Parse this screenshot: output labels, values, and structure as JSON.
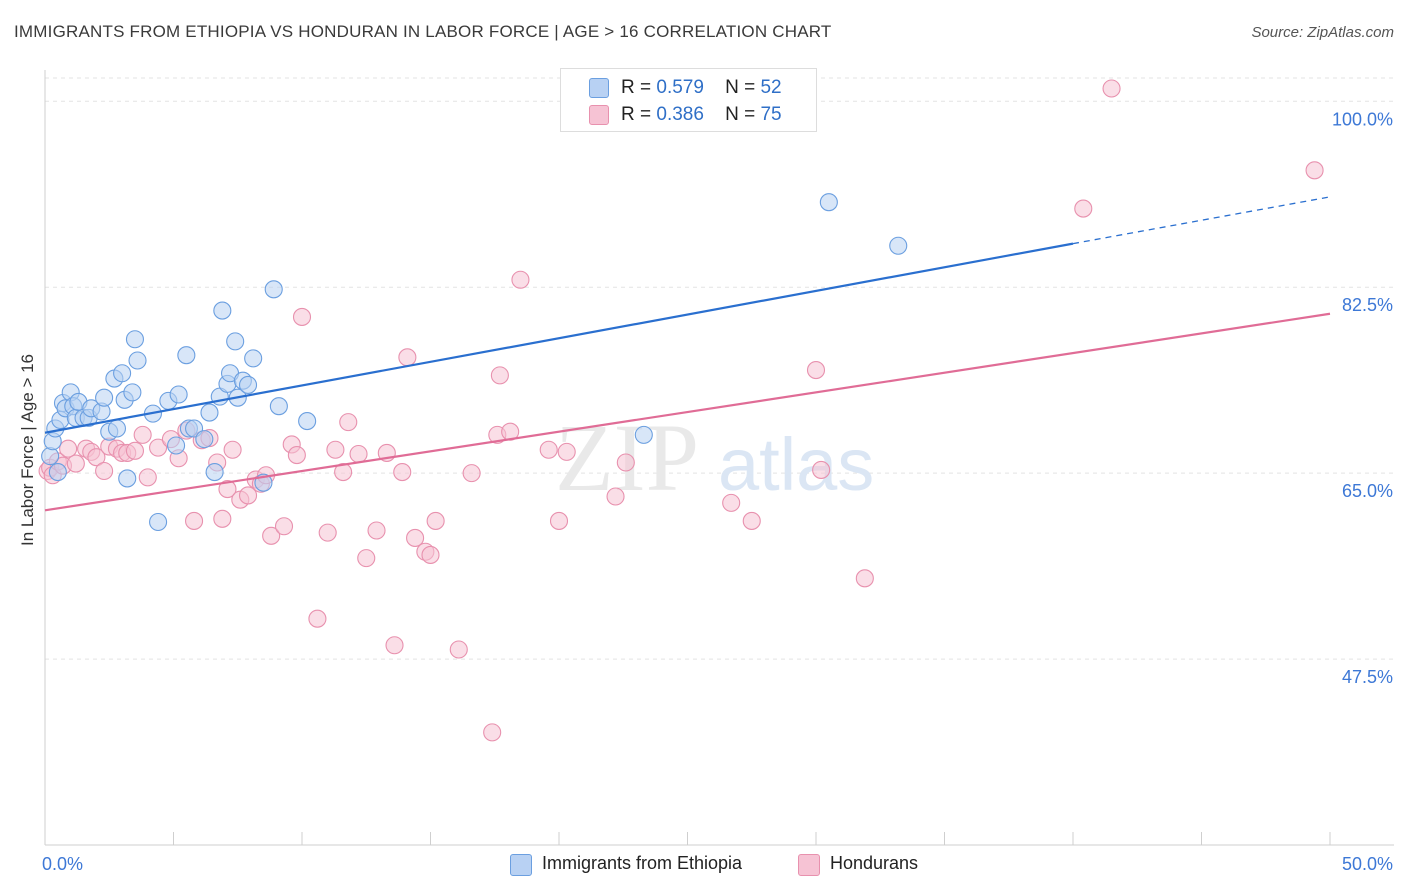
{
  "title": "IMMIGRANTS FROM ETHIOPIA VS HONDURAN IN LABOR FORCE | AGE > 16 CORRELATION CHART",
  "source": "Source: ZipAtlas.com",
  "watermark": {
    "zip": "ZIP",
    "atlas": "atlas"
  },
  "colors": {
    "blue": "#6b9fe0",
    "blue_fill": "#b8d1f3",
    "blue_line": "#2a6fcf",
    "pink": "#e891ae",
    "pink_fill": "#f6c3d4",
    "pink_line": "#e06c96",
    "axis_text": "#3d78d6"
  },
  "legend": [
    {
      "r_label": "R =",
      "r": "0.579",
      "n_label": "N =",
      "n": "52"
    },
    {
      "r_label": "R =",
      "r": "0.386",
      "n_label": "N =",
      "n": "75"
    }
  ],
  "chart_data": {
    "type": "scatter",
    "title": "IMMIGRANTS FROM ETHIOPIA VS HONDURAN IN LABOR FORCE | AGE > 16 CORRELATION CHART",
    "xlabel": "",
    "ylabel": "In Labor Force | Age > 16",
    "xlim": [
      0,
      50
    ],
    "ylim": [
      30,
      102
    ],
    "x_tick_labels": [
      "0.0%",
      "50.0%"
    ],
    "y_ticks": [
      47.5,
      65.0,
      82.5,
      100.0
    ],
    "y_tick_labels": [
      "47.5%",
      "65.0%",
      "82.5%",
      "100.0%"
    ],
    "series": [
      {
        "name": "Immigrants from Ethiopia",
        "color": "#6b9fe0",
        "trend": {
          "x0": 0,
          "y0": 68.8,
          "x1": 40,
          "y1": 86.6,
          "dash_to_x": 50,
          "dash_to_y": 91.0
        },
        "points": [
          [
            0.2,
            66.6
          ],
          [
            0.3,
            68.0
          ],
          [
            0.4,
            69.2
          ],
          [
            0.5,
            65.1
          ],
          [
            0.6,
            70.0
          ],
          [
            0.7,
            71.6
          ],
          [
            0.8,
            71.1
          ],
          [
            1.0,
            72.6
          ],
          [
            1.1,
            71.3
          ],
          [
            1.2,
            70.2
          ],
          [
            1.3,
            71.7
          ],
          [
            1.5,
            70.2
          ],
          [
            1.7,
            70.2
          ],
          [
            1.8,
            71.1
          ],
          [
            2.2,
            70.8
          ],
          [
            2.3,
            72.1
          ],
          [
            2.5,
            68.9
          ],
          [
            2.7,
            73.9
          ],
          [
            2.8,
            69.2
          ],
          [
            3.0,
            74.4
          ],
          [
            3.1,
            71.9
          ],
          [
            3.2,
            64.5
          ],
          [
            3.4,
            72.6
          ],
          [
            3.5,
            77.6
          ],
          [
            3.6,
            75.6
          ],
          [
            4.2,
            70.6
          ],
          [
            4.4,
            60.4
          ],
          [
            4.8,
            71.8
          ],
          [
            5.1,
            67.6
          ],
          [
            5.2,
            72.4
          ],
          [
            5.5,
            76.1
          ],
          [
            5.6,
            69.2
          ],
          [
            5.8,
            69.2
          ],
          [
            6.2,
            68.2
          ],
          [
            6.4,
            70.7
          ],
          [
            6.6,
            65.1
          ],
          [
            6.8,
            72.2
          ],
          [
            6.9,
            80.3
          ],
          [
            7.1,
            73.4
          ],
          [
            7.2,
            74.4
          ],
          [
            7.4,
            77.4
          ],
          [
            7.5,
            72.1
          ],
          [
            7.7,
            73.7
          ],
          [
            7.9,
            73.3
          ],
          [
            8.1,
            75.8
          ],
          [
            8.5,
            64.1
          ],
          [
            8.9,
            82.3
          ],
          [
            9.1,
            71.3
          ],
          [
            10.2,
            69.9
          ],
          [
            23.3,
            68.6
          ],
          [
            30.5,
            90.5
          ],
          [
            33.2,
            86.4
          ]
        ]
      },
      {
        "name": "Hondurans",
        "color": "#e891ae",
        "trend": {
          "x0": 0,
          "y0": 61.5,
          "x1": 50,
          "y1": 80.0
        },
        "points": [
          [
            0.1,
            65.2
          ],
          [
            0.2,
            65.5
          ],
          [
            0.3,
            64.8
          ],
          [
            0.5,
            66.1
          ],
          [
            0.7,
            65.7
          ],
          [
            0.9,
            67.3
          ],
          [
            1.2,
            65.9
          ],
          [
            1.6,
            67.3
          ],
          [
            1.8,
            67.0
          ],
          [
            2.0,
            66.5
          ],
          [
            2.3,
            65.2
          ],
          [
            2.5,
            67.5
          ],
          [
            2.8,
            67.3
          ],
          [
            3.0,
            66.9
          ],
          [
            3.2,
            66.9
          ],
          [
            3.5,
            67.1
          ],
          [
            3.8,
            68.6
          ],
          [
            4.0,
            64.6
          ],
          [
            4.4,
            67.4
          ],
          [
            4.9,
            68.2
          ],
          [
            5.2,
            66.4
          ],
          [
            5.5,
            69.0
          ],
          [
            5.8,
            60.5
          ],
          [
            6.1,
            68.1
          ],
          [
            6.4,
            68.3
          ],
          [
            6.7,
            66.0
          ],
          [
            6.9,
            60.7
          ],
          [
            7.1,
            63.5
          ],
          [
            7.3,
            67.2
          ],
          [
            7.6,
            62.5
          ],
          [
            7.9,
            62.9
          ],
          [
            8.2,
            64.4
          ],
          [
            8.4,
            64.0
          ],
          [
            8.6,
            64.8
          ],
          [
            8.8,
            59.1
          ],
          [
            9.3,
            60.0
          ],
          [
            9.6,
            67.7
          ],
          [
            9.8,
            66.7
          ],
          [
            10.0,
            79.7
          ],
          [
            10.6,
            51.3
          ],
          [
            11.0,
            59.4
          ],
          [
            11.3,
            67.2
          ],
          [
            11.6,
            65.1
          ],
          [
            11.8,
            69.8
          ],
          [
            12.2,
            66.8
          ],
          [
            12.5,
            57.0
          ],
          [
            12.9,
            59.6
          ],
          [
            13.3,
            66.9
          ],
          [
            13.6,
            48.8
          ],
          [
            13.9,
            65.1
          ],
          [
            14.1,
            75.9
          ],
          [
            14.4,
            58.9
          ],
          [
            14.8,
            57.6
          ],
          [
            15.0,
            57.3
          ],
          [
            15.2,
            60.5
          ],
          [
            16.1,
            48.4
          ],
          [
            16.6,
            65.0
          ],
          [
            17.4,
            40.6
          ],
          [
            17.6,
            68.6
          ],
          [
            17.7,
            74.2
          ],
          [
            18.1,
            68.9
          ],
          [
            18.5,
            83.2
          ],
          [
            19.6,
            67.2
          ],
          [
            20.0,
            60.5
          ],
          [
            20.3,
            67.0
          ],
          [
            22.2,
            62.8
          ],
          [
            22.6,
            66.0
          ],
          [
            26.7,
            62.2
          ],
          [
            27.5,
            60.5
          ],
          [
            30.0,
            74.7
          ],
          [
            30.2,
            65.3
          ],
          [
            31.9,
            55.1
          ],
          [
            40.4,
            89.9
          ],
          [
            41.5,
            101.2
          ],
          [
            49.4,
            93.5
          ]
        ]
      }
    ]
  },
  "legend_bottom": [
    "Immigrants from Ethiopia",
    "Hondurans"
  ]
}
